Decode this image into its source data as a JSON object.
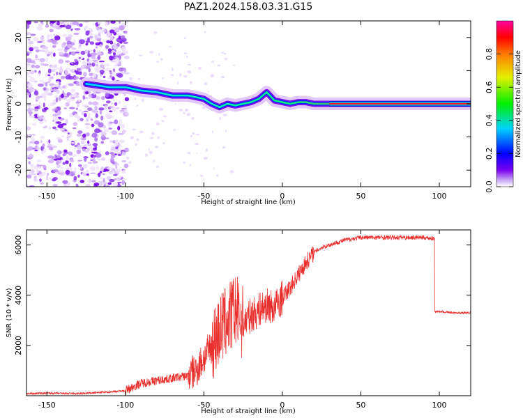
{
  "title": "PAZ1.2024.158.03.31.G15",
  "chart_data": [
    {
      "type": "heatmap",
      "xlabel": "Height of straight line (km)",
      "ylabel": "Frequency (Hz)",
      "xlim": [
        -163,
        120
      ],
      "ylim": [
        -25,
        25
      ],
      "xticks": [
        -150,
        -100,
        -50,
        0,
        50,
        100
      ],
      "yticks": [
        -20,
        -10,
        0,
        10,
        20
      ],
      "colorbar": {
        "label": "Normalized spectral amplitude",
        "range": [
          0,
          1
        ],
        "ticks": [
          "0.0",
          "0.2",
          "0.4",
          "0.6",
          "0.8"
        ],
        "colormap": "rainbow (white → violet → blue → cyan → green → yellow → red → magenta)"
      },
      "ridge": {
        "x": [
          -125,
          -110,
          -100,
          -90,
          -80,
          -70,
          -60,
          -50,
          -45,
          -40,
          -35,
          -30,
          -25,
          -20,
          -15,
          -10,
          -5,
          0,
          5,
          10,
          15,
          20,
          30,
          40,
          60,
          80,
          100,
          120
        ],
        "y": [
          6,
          5,
          5,
          4,
          3.5,
          2.5,
          2.5,
          1.5,
          0,
          -1,
          0,
          -0.5,
          0,
          0.5,
          1.5,
          3.5,
          1,
          0.5,
          0,
          0.5,
          0.5,
          0,
          0,
          0,
          0,
          0,
          0,
          0
        ]
      },
      "grid": false
    },
    {
      "type": "line",
      "xlabel": "Height of straight line (km)",
      "ylabel": "SNR (10 * v/v)",
      "xlim": [
        -163,
        120
      ],
      "ylim": [
        0,
        6600
      ],
      "xticks": [
        -150,
        -100,
        -50,
        0,
        50,
        100
      ],
      "yticks": [
        2000,
        4000,
        6000
      ],
      "series_color": "#e8302e",
      "grid": false,
      "points": {
        "x": [
          -163,
          -150,
          -130,
          -110,
          -100,
          -95,
          -90,
          -80,
          -70,
          -60,
          -55,
          -50,
          -45,
          -40,
          -35,
          -30,
          -25,
          -20,
          -15,
          -10,
          -5,
          0,
          5,
          10,
          15,
          20,
          25,
          30,
          35,
          40,
          50,
          60,
          70,
          80,
          90,
          97,
          98,
          100,
          110,
          120
        ],
        "y": [
          80,
          100,
          80,
          150,
          200,
          350,
          500,
          600,
          700,
          800,
          1000,
          1500,
          2000,
          2600,
          3000,
          3400,
          2900,
          3200,
          3400,
          3600,
          3500,
          3900,
          4300,
          4800,
          5300,
          5700,
          5900,
          6000,
          6100,
          6200,
          6300,
          6300,
          6300,
          6300,
          6300,
          6250,
          3350,
          3350,
          3300,
          3300
        ]
      }
    }
  ]
}
